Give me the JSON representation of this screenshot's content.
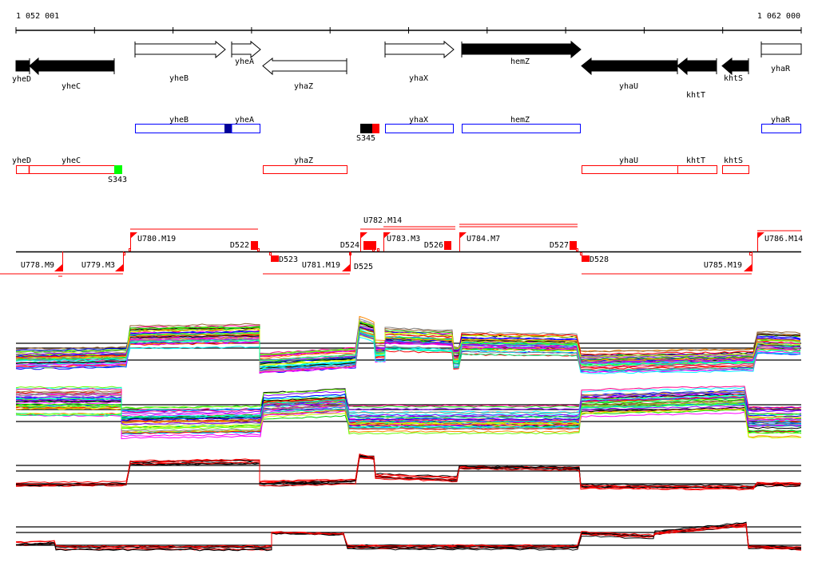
{
  "scale": {
    "start_label": "1 052 001",
    "end_label": "1 062 000"
  },
  "genes": {
    "yheD": "yheD",
    "yheC": "yheC",
    "yheB": "yheB",
    "yheA": "yheA",
    "yhaZ": "yhaZ",
    "yhaX": "yhaX",
    "hemZ": "hemZ",
    "yhaU": "yhaU",
    "khtT": "khtT",
    "khtS": "khtS",
    "yhaR": "yhaR"
  },
  "blue_track": {
    "yheB": "yheB",
    "yheA": "yheA",
    "S345": "S345",
    "yhaX": "yhaX",
    "hemZ": "hemZ",
    "yhaR": "yhaR"
  },
  "red_track": {
    "yheD": "yheD",
    "yheC": "yheC",
    "S343": "S343",
    "yhaZ": "yhaZ",
    "yhaU": "yhaU",
    "khtT": "khtT",
    "khtS": "khtS"
  },
  "transcripts": {
    "U778": "U778.M9",
    "U779": "U779.M3",
    "U780": "U780.M19",
    "D522": "D522",
    "D523": "D523",
    "U781": "U781.M19",
    "D524": "D524",
    "D525": "D525",
    "U782": "U782.M14",
    "U783": "U783.M3",
    "D526": "D526",
    "U784": "U784.M7",
    "D527": "D527",
    "D528": "D528",
    "U785": "U785.M19",
    "U786": "U786.M14"
  },
  "colors": {
    "forward_track": "#0000ff",
    "reverse_track": "#ff0000",
    "accent_green": "#00ff00",
    "dark_blue": "#000099"
  }
}
